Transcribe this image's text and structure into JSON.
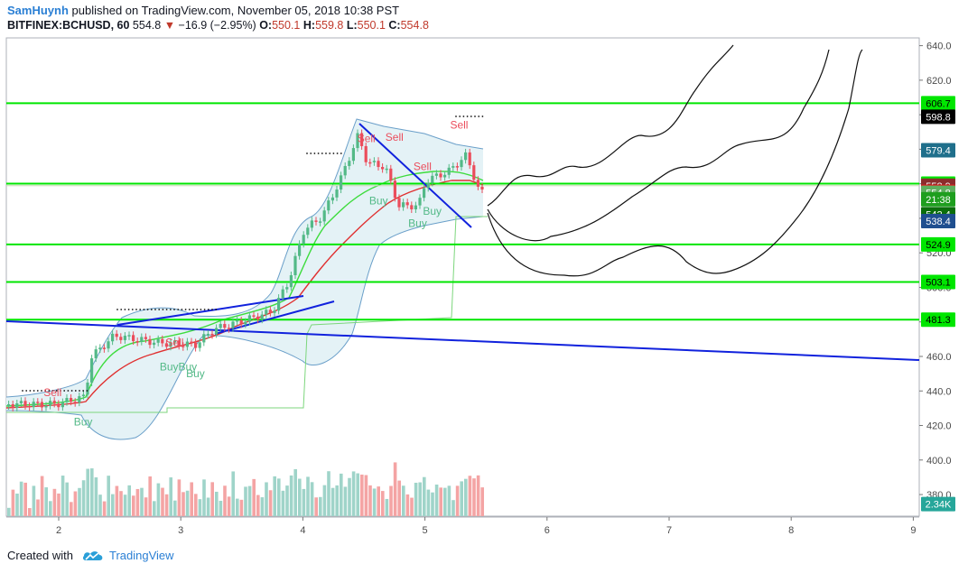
{
  "header": {
    "author": "SamHuynh",
    "published_text": "published on TradingView.com, November 05, 2018 10:38 PST",
    "symbol": "BITFINEX:BCHUSD, 60",
    "last": "554.8",
    "change": "−16.9 (−2.95%)",
    "o_label": "O:",
    "o": "550.1",
    "h_label": "H:",
    "h": "559.8",
    "l_label": "L:",
    "l": "550.1",
    "c_label": "C:",
    "c": "554.8"
  },
  "footer": {
    "created_with": "Created with",
    "brand": "TradingView"
  },
  "colors": {
    "up": "#53b987",
    "down": "#eb4d5c",
    "vol_up": "#9fd4c9",
    "vol_down": "#f4a4a4",
    "hline": "#00e600",
    "trend": "#1122dd",
    "bb_fill": "#e4f2f6",
    "bb_line": "#6a9fc9",
    "ma_red": "#e03030",
    "ma_green": "#3ddc3d"
  },
  "chart_data": {
    "type": "candlestick",
    "x_ticks": [
      "2",
      "3",
      "4",
      "5",
      "6",
      "7",
      "8",
      "9"
    ],
    "ylim": [
      370,
      645
    ],
    "y_ticks": [
      "640.0",
      "620.0",
      "600.0",
      "580.0",
      "560.0",
      "540.0",
      "520.0",
      "500.0",
      "480.0",
      "460.0",
      "440.0",
      "420.0",
      "400.0",
      "380.0"
    ],
    "price_labels": [
      {
        "text": "606.7",
        "price": 606.7,
        "bg": "#00e600",
        "fg": "#000000"
      },
      {
        "text": "598.8",
        "price": 598.8,
        "bg": "#000000",
        "fg": "#ffffff"
      },
      {
        "text": "579.4",
        "price": 579.4,
        "bg": "#1f6f8b",
        "fg": "#ffffff"
      },
      {
        "text": "560.1",
        "price": 560.1,
        "bg": "#00e600",
        "fg": "#000000"
      },
      {
        "text": "558.9",
        "price": 558.9,
        "bg": "#8b2c2c",
        "fg": "#ffffff"
      },
      {
        "text": "555.4",
        "price": 555.4,
        "bg": "#e0191f",
        "fg": "#ffffff"
      },
      {
        "text": "554.8",
        "price": 554.8,
        "bg": "#5fae5f",
        "fg": "#ffffff"
      },
      {
        "text": "21:38",
        "price": 551.0,
        "bg": "#1e9e1e",
        "fg": "#ffffff"
      },
      {
        "text": "542.4",
        "price": 542.4,
        "bg": "#0b6e0b",
        "fg": "#ffffff"
      },
      {
        "text": "538.4",
        "price": 538.4,
        "bg": "#1f4f8f",
        "fg": "#ffffff"
      },
      {
        "text": "524.9",
        "price": 524.9,
        "bg": "#00e600",
        "fg": "#000000"
      },
      {
        "text": "503.1",
        "price": 503.1,
        "bg": "#00e600",
        "fg": "#000000"
      },
      {
        "text": "481.3",
        "price": 481.3,
        "bg": "#00e600",
        "fg": "#000000"
      },
      {
        "text": "2.34K",
        "price": 374.5,
        "bg": "#26a69a",
        "fg": "#ffffff"
      }
    ],
    "horizontal_levels": [
      606.7,
      560.1,
      524.9,
      503.1,
      481.3
    ],
    "signals": [
      {
        "text": "Sell",
        "x": 1.95,
        "price": 437,
        "color": "#eb4d5c"
      },
      {
        "text": "Buy",
        "x": 2.2,
        "price": 420,
        "color": "#53b987"
      },
      {
        "text": "Sell",
        "x": 2.95,
        "price": 466,
        "color": "#eb4d5c"
      },
      {
        "text": "BuyBuy",
        "x": 2.98,
        "price": 452,
        "color": "#53b987"
      },
      {
        "text": "Buy",
        "x": 3.12,
        "price": 448,
        "color": "#53b987"
      },
      {
        "text": "Sell",
        "x": 4.52,
        "price": 584,
        "color": "#eb4d5c"
      },
      {
        "text": "Sell",
        "x": 4.75,
        "price": 585,
        "color": "#eb4d5c"
      },
      {
        "text": "Buy",
        "x": 4.62,
        "price": 548,
        "color": "#53b987"
      },
      {
        "text": "Sell",
        "x": 4.98,
        "price": 568,
        "color": "#eb4d5c"
      },
      {
        "text": "Buy",
        "x": 5.06,
        "price": 542,
        "color": "#53b987"
      },
      {
        "text": "Buy",
        "x": 4.94,
        "price": 535,
        "color": "#53b987"
      },
      {
        "text": "Sell",
        "x": 5.28,
        "price": 592,
        "color": "#eb4d5c"
      }
    ],
    "volume_label": "2.34K"
  }
}
